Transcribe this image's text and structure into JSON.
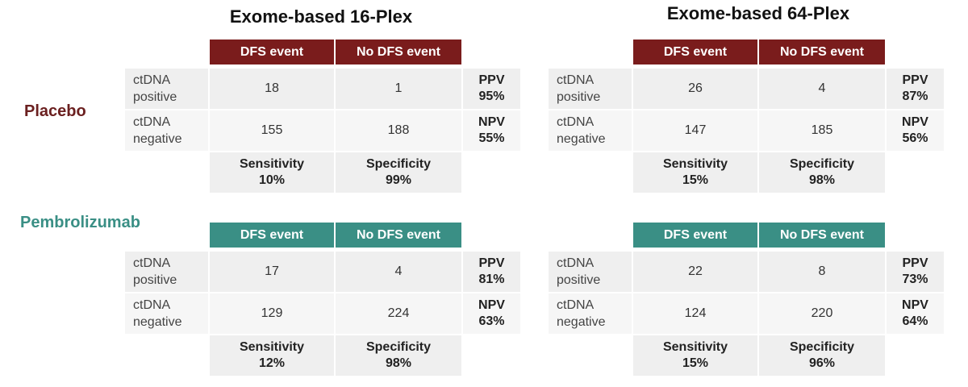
{
  "columns": [
    {
      "title": "Exome-based 16-Plex"
    },
    {
      "title": "Exome-based 64-Plex"
    }
  ],
  "arms": [
    {
      "name": "Placebo"
    },
    {
      "name": "Pembrolizumab"
    }
  ],
  "tables": [
    {
      "header": [
        "DFS event",
        "No DFS event"
      ],
      "rows": [
        {
          "label": "ctDNA positive",
          "values": [
            "18",
            "1"
          ],
          "metric": "PPV",
          "metric_value": "95%"
        },
        {
          "label": "ctDNA negative",
          "values": [
            "155",
            "188"
          ],
          "metric": "NPV",
          "metric_value": "55%"
        }
      ],
      "footer": [
        {
          "label": "Sensitivity",
          "value": "10%"
        },
        {
          "label": "Specificity",
          "value": "99%"
        }
      ]
    },
    {
      "header": [
        "DFS event",
        "No DFS event"
      ],
      "rows": [
        {
          "label": "ctDNA positive",
          "values": [
            "26",
            "4"
          ],
          "metric": "PPV",
          "metric_value": "87%"
        },
        {
          "label": "ctDNA negative",
          "values": [
            "147",
            "185"
          ],
          "metric": "NPV",
          "metric_value": "56%"
        }
      ],
      "footer": [
        {
          "label": "Sensitivity",
          "value": "15%"
        },
        {
          "label": "Specificity",
          "value": "98%"
        }
      ]
    },
    {
      "header": [
        "DFS event",
        "No DFS event"
      ],
      "rows": [
        {
          "label": "ctDNA positive",
          "values": [
            "17",
            "4"
          ],
          "metric": "PPV",
          "metric_value": "81%"
        },
        {
          "label": "ctDNA negative",
          "values": [
            "129",
            "224"
          ],
          "metric": "NPV",
          "metric_value": "63%"
        }
      ],
      "footer": [
        {
          "label": "Sensitivity",
          "value": "12%"
        },
        {
          "label": "Specificity",
          "value": "98%"
        }
      ]
    },
    {
      "header": [
        "DFS event",
        "No DFS event"
      ],
      "rows": [
        {
          "label": "ctDNA positive",
          "values": [
            "22",
            "8"
          ],
          "metric": "PPV",
          "metric_value": "73%"
        },
        {
          "label": "ctDNA negative",
          "values": [
            "124",
            "220"
          ],
          "metric": "NPV",
          "metric_value": "64%"
        }
      ],
      "footer": [
        {
          "label": "Sensitivity",
          "value": "15%"
        },
        {
          "label": "Specificity",
          "value": "96%"
        }
      ]
    }
  ]
}
